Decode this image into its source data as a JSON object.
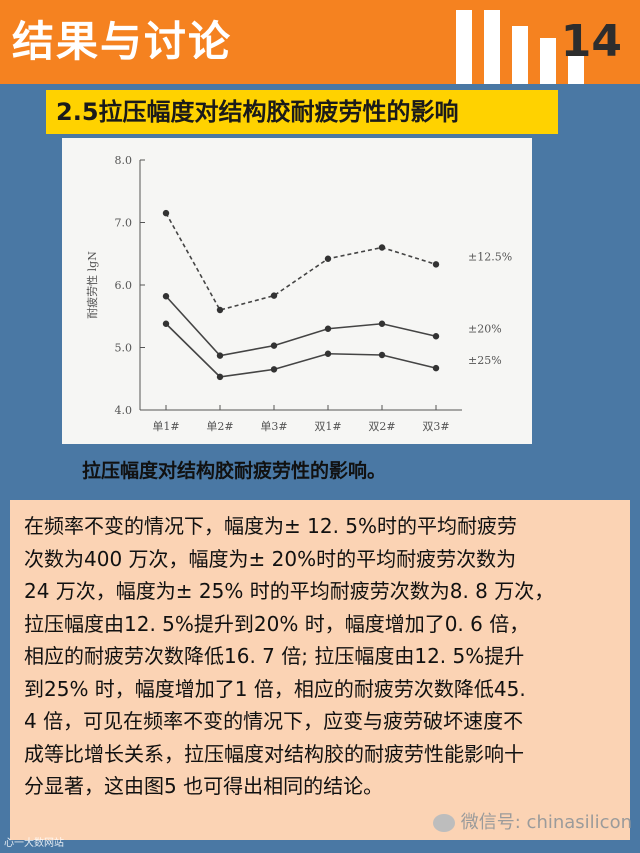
{
  "header": {
    "title": "结果与讨论",
    "page_number": "14",
    "background_color": "#f58220"
  },
  "section": {
    "title": "2.5拉压幅度对结构胶耐疲劳性的影响",
    "background_color": "#ffd200"
  },
  "chart_data": {
    "type": "line",
    "categories": [
      "单1#",
      "单2#",
      "单3#",
      "双1#",
      "双2#",
      "双3#"
    ],
    "ylabel": "耐疲劳性 lgN",
    "xlabel": "",
    "ylim": [
      4.0,
      8.0
    ],
    "yticks": [
      "4.0",
      "5.0",
      "6.0",
      "7.0",
      "8.0"
    ],
    "grid": false,
    "series": [
      {
        "name": "±12.5%",
        "style": "dashed",
        "values": [
          7.15,
          5.6,
          5.83,
          6.42,
          6.6,
          6.33
        ]
      },
      {
        "name": "±20%",
        "style": "solid",
        "values": [
          5.82,
          4.87,
          5.03,
          5.3,
          5.38,
          5.18
        ]
      },
      {
        "name": "±25%",
        "style": "solid",
        "values": [
          5.38,
          4.53,
          4.65,
          4.9,
          4.88,
          4.67
        ]
      }
    ]
  },
  "caption": "拉压幅度对结构胶耐疲劳性的影响。",
  "paragraph": {
    "lines": [
      "在频率不变的情况下，幅度为± 12. 5%时的平均耐疲劳",
      "次数为400 万次，幅度为± 20%时的平均耐疲劳次数为",
      "24 万次，幅度为± 25% 时的平均耐疲劳次数为8. 8 万次，",
      "拉压幅度由12. 5%提升到20% 时，幅度增加了0. 6 倍，",
      "相应的耐疲劳次数降低16. 7 倍; 拉压幅度由12. 5%提升",
      "到25% 时，幅度增加了1 倍，相应的耐疲劳次数降低45.",
      "4 倍，可见在频率不变的情况下，应变与疲劳破坏速度不",
      "成等比增长关系，拉压幅度对结构胶的耐疲劳性能影响十",
      "分显著，这由图5 也可得出相同的结论。"
    ],
    "background_color": "#fbd3b4"
  },
  "watermark": "微信号: chinasilicon",
  "corner_mark": "心一大数网站"
}
